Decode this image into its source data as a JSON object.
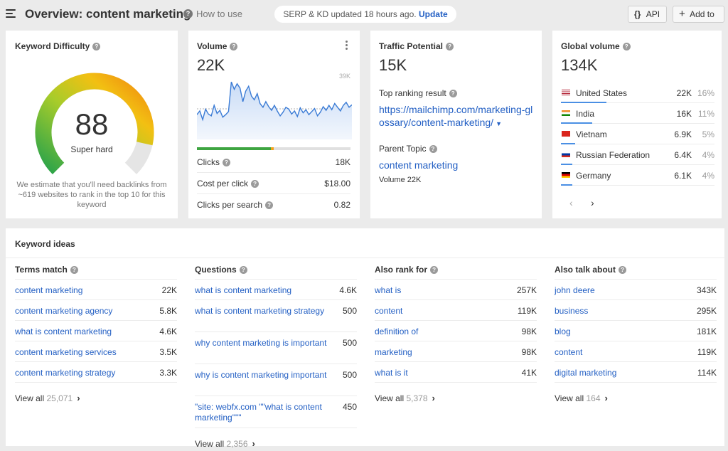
{
  "header": {
    "title": "Overview: content marketing",
    "how_to_use": "How to use",
    "serp_status": "SERP & KD updated 18 hours ago.",
    "update_label": "Update",
    "api_label": "API",
    "add_to_label": "Add to"
  },
  "kd": {
    "title": "Keyword Difficulty",
    "value": "88",
    "label": "Super hard",
    "fraction": 0.88,
    "note": "We estimate that you'll need backlinks from ~619 websites to rank in the top 10 for this keyword"
  },
  "volume": {
    "title": "Volume",
    "value": "22K",
    "chart_max_label": "39K",
    "clicks_bar": {
      "paid_fraction": 0.96,
      "organic_fraction": 0.02
    },
    "rows": [
      {
        "label": "Clicks",
        "value": "18K"
      },
      {
        "label": "Cost per click",
        "value": "$18.00"
      },
      {
        "label": "Clicks per search",
        "value": "0.82"
      }
    ],
    "trend": [
      0.4,
      0.46,
      0.32,
      0.49,
      0.41,
      0.38,
      0.55,
      0.42,
      0.47,
      0.36,
      0.4,
      0.45,
      0.93,
      0.81,
      0.9,
      0.83,
      0.61,
      0.78,
      0.86,
      0.7,
      0.64,
      0.74,
      0.58,
      0.52,
      0.61,
      0.53,
      0.47,
      0.55,
      0.46,
      0.38,
      0.44,
      0.52,
      0.49,
      0.41,
      0.46,
      0.37,
      0.51,
      0.43,
      0.48,
      0.4,
      0.45,
      0.5,
      0.38,
      0.44,
      0.53,
      0.47,
      0.55,
      0.48,
      0.58,
      0.52,
      0.46,
      0.55,
      0.6,
      0.52,
      0.56
    ]
  },
  "traffic": {
    "title": "Traffic Potential",
    "value": "15K",
    "top_result_label": "Top ranking result",
    "top_result_url": "https://mailchimp.com/marketing-glossary/content-marketing/",
    "parent_topic_label": "Parent Topic",
    "parent_topic": "content marketing",
    "parent_volume": "Volume 22K"
  },
  "global": {
    "title": "Global volume",
    "value": "134K",
    "countries": [
      {
        "name": "United States",
        "volume": "22K",
        "pct": "16%",
        "share": 0.16,
        "flag": "us-flag"
      },
      {
        "name": "India",
        "volume": "16K",
        "pct": "11%",
        "share": 0.11,
        "flag": "in-flag"
      },
      {
        "name": "Vietnam",
        "volume": "6.9K",
        "pct": "5%",
        "share": 0.05,
        "flag": "vn-flag"
      },
      {
        "name": "Russian Federation",
        "volume": "6.4K",
        "pct": "4%",
        "share": 0.04,
        "flag": "ru-flag"
      },
      {
        "name": "Germany",
        "volume": "6.1K",
        "pct": "4%",
        "share": 0.04,
        "flag": "de-flag"
      }
    ],
    "prev": "‹",
    "next": "›"
  },
  "ideas": {
    "title": "Keyword ideas",
    "view_all": "View all",
    "columns": [
      {
        "title": "Terms match",
        "count": "25,071",
        "rows": [
          {
            "kw": "content marketing",
            "vol": "22K"
          },
          {
            "kw": "content marketing agency",
            "vol": "5.8K"
          },
          {
            "kw": "what is content marketing",
            "vol": "4.6K"
          },
          {
            "kw": "content marketing services",
            "vol": "3.5K"
          },
          {
            "kw": "content marketing strategy",
            "vol": "3.3K"
          }
        ]
      },
      {
        "title": "Questions",
        "count": "2,356",
        "rows": [
          {
            "kw": "what is content marketing",
            "vol": "4.6K"
          },
          {
            "kw": "what is content marketing strategy",
            "vol": "500"
          },
          {
            "kw": "why content marketing is important",
            "vol": "500"
          },
          {
            "kw": "why is content marketing important",
            "vol": "500"
          },
          {
            "kw": "\"site: webfx.com \"\"what is content marketing\"\"\"",
            "vol": "450"
          }
        ]
      },
      {
        "title": "Also rank for",
        "count": "5,378",
        "rows": [
          {
            "kw": "what is",
            "vol": "257K"
          },
          {
            "kw": "content",
            "vol": "119K"
          },
          {
            "kw": "definition of",
            "vol": "98K"
          },
          {
            "kw": "marketing",
            "vol": "98K"
          },
          {
            "kw": "what is it",
            "vol": "41K"
          }
        ]
      },
      {
        "title": "Also talk about",
        "count": "164",
        "rows": [
          {
            "kw": "john deere",
            "vol": "343K"
          },
          {
            "kw": "business",
            "vol": "295K"
          },
          {
            "kw": "blog",
            "vol": "181K"
          },
          {
            "kw": "content",
            "vol": "119K"
          },
          {
            "kw": "digital marketing",
            "vol": "114K"
          }
        ]
      }
    ]
  }
}
